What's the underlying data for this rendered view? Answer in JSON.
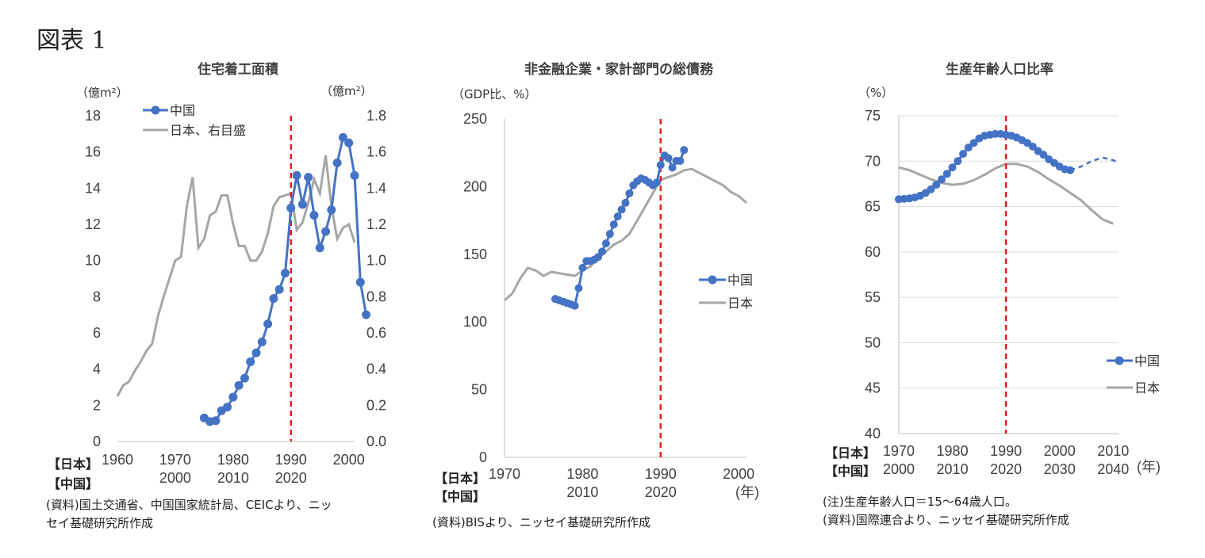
{
  "figure_label": "図表 1",
  "chart_data": [
    {
      "type": "line",
      "title": "住宅着工面積",
      "y_unit_left": "（億m²）",
      "y_unit_right": "（億m²）",
      "row_labels": [
        "【日本】",
        "【中国】"
      ],
      "x_ticks_japan": [
        "1960",
        "1970",
        "1980",
        "1990",
        "2000"
      ],
      "x_ticks_china": [
        "2000",
        "2010",
        "2020"
      ],
      "y_ticks_left": [
        "0",
        "2",
        "4",
        "6",
        "8",
        "10",
        "12",
        "14",
        "16",
        "18"
      ],
      "y_ticks_right": [
        "0.0",
        "0.2",
        "0.4",
        "0.6",
        "0.8",
        "1.0",
        "1.2",
        "1.4",
        "1.6",
        "1.8"
      ],
      "ylim_left": [
        0,
        18
      ],
      "ylim_right": [
        0,
        1.8
      ],
      "xlim_japan": [
        1960,
        2001
      ],
      "reference_line_japan_year": 1990,
      "legend": [
        "中国",
        "日本、右目盛"
      ],
      "colors": {
        "china": "#4472C4",
        "japan": "#A6A6A6",
        "ref": "#E02020"
      },
      "series": [
        {
          "name": "中国",
          "x_china": [
            2005,
            2006,
            2007,
            2008,
            2009,
            2010,
            2011,
            2012,
            2013,
            2014,
            2015,
            2016,
            2017,
            2018,
            2019,
            2020,
            2021,
            2022,
            2023,
            2024,
            2025,
            2026,
            2027,
            2028,
            2029,
            2030,
            2031,
            2032,
            2033,
            2034
          ],
          "values": [
            1.3,
            1.1,
            1.15,
            1.7,
            1.9,
            2.45,
            3.1,
            3.5,
            4.4,
            4.9,
            5.5,
            6.5,
            7.9,
            8.4,
            9.3,
            12.9,
            14.7,
            13.1,
            14.6,
            12.5,
            10.7,
            11.6,
            12.8,
            15.4,
            16.8,
            16.5,
            14.7,
            8.8,
            7.0,
            null
          ]
        },
        {
          "name": "日本、右目盛",
          "x": [
            1960,
            1961,
            1962,
            1963,
            1964,
            1965,
            1966,
            1967,
            1968,
            1969,
            1970,
            1971,
            1972,
            1973,
            1974,
            1975,
            1976,
            1977,
            1978,
            1979,
            1980,
            1981,
            1982,
            1983,
            1984,
            1985,
            1986,
            1987,
            1988,
            1989,
            1990,
            1991,
            1992,
            1993,
            1994,
            1995,
            1996,
            1997,
            1998,
            1999,
            2000,
            2001
          ],
          "values": [
            0.25,
            0.31,
            0.33,
            0.39,
            0.44,
            0.5,
            0.54,
            0.69,
            0.8,
            0.9,
            1.0,
            1.02,
            1.3,
            1.46,
            1.07,
            1.12,
            1.25,
            1.27,
            1.36,
            1.36,
            1.2,
            1.08,
            1.08,
            1.0,
            1.0,
            1.05,
            1.15,
            1.3,
            1.35,
            1.36,
            1.37,
            1.17,
            1.21,
            1.32,
            1.45,
            1.37,
            1.58,
            1.3,
            1.12,
            1.18,
            1.2,
            1.1
          ]
        }
      ]
    },
    {
      "type": "line",
      "title": "非金融企業・家計部門の総債務",
      "y_unit": "（GDP比、%）",
      "row_labels": [
        "【日本】",
        "【中国】"
      ],
      "x_ticks_japan": [
        "1970",
        "1980",
        "1990",
        "2000"
      ],
      "x_ticks_china": [
        "2010",
        "2020"
      ],
      "x_end_label": "(年)",
      "y_ticks": [
        "0",
        "50",
        "100",
        "150",
        "200",
        "250"
      ],
      "ylim": [
        0,
        250
      ],
      "xlim_japan": [
        1970,
        2001
      ],
      "reference_line_japan_year": 1990,
      "legend": [
        "中国",
        "日本"
      ],
      "colors": {
        "china": "#4472C4",
        "japan": "#A6A6A6",
        "ref": "#E02020"
      },
      "series": [
        {
          "name": "中国",
          "x_japan": [
            1976.5,
            1977,
            1977.5,
            1978,
            1978.5,
            1979,
            1979.5,
            1980,
            1980.5,
            1981,
            1981.5,
            1982,
            1982.5,
            1983,
            1983.5,
            1984,
            1984.5,
            1985,
            1985.5,
            1986,
            1986.5,
            1987,
            1987.5,
            1988,
            1988.5,
            1989,
            1989.5,
            1990,
            1990.5,
            1991,
            1991.5,
            1992,
            1992.5,
            1993
          ],
          "values": [
            117,
            116,
            115,
            114,
            113,
            112,
            125,
            140,
            145,
            145,
            146,
            148,
            152,
            158,
            165,
            172,
            178,
            183,
            188,
            195,
            201,
            204,
            206,
            205,
            203,
            201,
            203,
            216,
            223,
            221,
            214,
            219,
            219,
            227
          ]
        },
        {
          "name": "日本",
          "x": [
            1970,
            1971,
            1972,
            1973,
            1974,
            1975,
            1976,
            1977,
            1978,
            1979,
            1980,
            1981,
            1982,
            1983,
            1984,
            1985,
            1986,
            1987,
            1988,
            1989,
            1990,
            1991,
            1992,
            1993,
            1994,
            1995,
            1996,
            1997,
            1998,
            1999,
            2000,
            2001
          ],
          "values": [
            116,
            121,
            132,
            140,
            138,
            134,
            137,
            136,
            135,
            134,
            138,
            141,
            147,
            152,
            157,
            160,
            165,
            175,
            185,
            195,
            205,
            207,
            209,
            212,
            213,
            210,
            207,
            204,
            201,
            196,
            193,
            188
          ]
        }
      ]
    },
    {
      "type": "line",
      "title": "生産年齢人口比率",
      "y_unit": "（%）",
      "row_labels": [
        "【日本】",
        "【中国】"
      ],
      "x_ticks_japan": [
        "1970",
        "1980",
        "1990",
        "2000",
        "2010"
      ],
      "x_ticks_china": [
        "2000",
        "2010",
        "2020",
        "2030",
        "2040"
      ],
      "x_end_label": "(年)",
      "y_ticks": [
        "40",
        "45",
        "50",
        "55",
        "60",
        "65",
        "70",
        "75"
      ],
      "ylim": [
        40,
        75
      ],
      "xlim_japan": [
        1970,
        2011
      ],
      "reference_line_japan_year": 1990,
      "legend": [
        "中国",
        "日本"
      ],
      "colors": {
        "china": "#4472C4",
        "japan": "#A6A6A6",
        "ref": "#E02020"
      },
      "series": [
        {
          "name": "中国",
          "x_china": [
            2000,
            2001,
            2002,
            2003,
            2004,
            2005,
            2006,
            2007,
            2008,
            2009,
            2010,
            2011,
            2012,
            2013,
            2014,
            2015,
            2016,
            2017,
            2018,
            2019,
            2020,
            2021,
            2022,
            2023,
            2024,
            2025,
            2026,
            2027,
            2028,
            2029,
            2030,
            2031,
            2032
          ],
          "values": [
            65.8,
            65.85,
            65.9,
            66.0,
            66.2,
            66.5,
            66.9,
            67.4,
            68.0,
            68.6,
            69.3,
            70.0,
            70.8,
            71.5,
            72.0,
            72.5,
            72.8,
            72.9,
            73.0,
            73.0,
            72.9,
            72.8,
            72.6,
            72.3,
            72.0,
            71.6,
            71.1,
            70.7,
            70.2,
            69.8,
            69.4,
            69.1,
            69.0
          ],
          "projection_x_china": [
            2032,
            2034,
            2036,
            2038,
            2040,
            2041
          ],
          "projection_values": [
            69.0,
            69.4,
            70.0,
            70.4,
            70.1,
            69.8
          ]
        },
        {
          "name": "日本",
          "x": [
            1970,
            1972,
            1974,
            1976,
            1978,
            1980,
            1982,
            1984,
            1986,
            1988,
            1990,
            1992,
            1994,
            1996,
            1998,
            2000,
            2002,
            2004,
            2006,
            2008,
            2010
          ],
          "values": [
            69.3,
            69.0,
            68.5,
            68.0,
            67.6,
            67.4,
            67.5,
            67.9,
            68.5,
            69.2,
            69.7,
            69.7,
            69.4,
            68.8,
            68.0,
            67.3,
            66.5,
            65.7,
            64.6,
            63.6,
            63.1
          ]
        }
      ]
    }
  ],
  "notes": {
    "chart1_lines": [
      "(資料)国土交通省、中国国家統計局、CEICより、ニッ",
      "セイ基礎研究所作成"
    ],
    "chart2_lines": [
      "(資料)BISより、ニッセイ基礎研究所作成"
    ],
    "chart3_lines": [
      "(注)生産年齢人口＝15～64歳人口。",
      "(資料)国際連合より、ニッセイ基礎研究所作成"
    ]
  }
}
